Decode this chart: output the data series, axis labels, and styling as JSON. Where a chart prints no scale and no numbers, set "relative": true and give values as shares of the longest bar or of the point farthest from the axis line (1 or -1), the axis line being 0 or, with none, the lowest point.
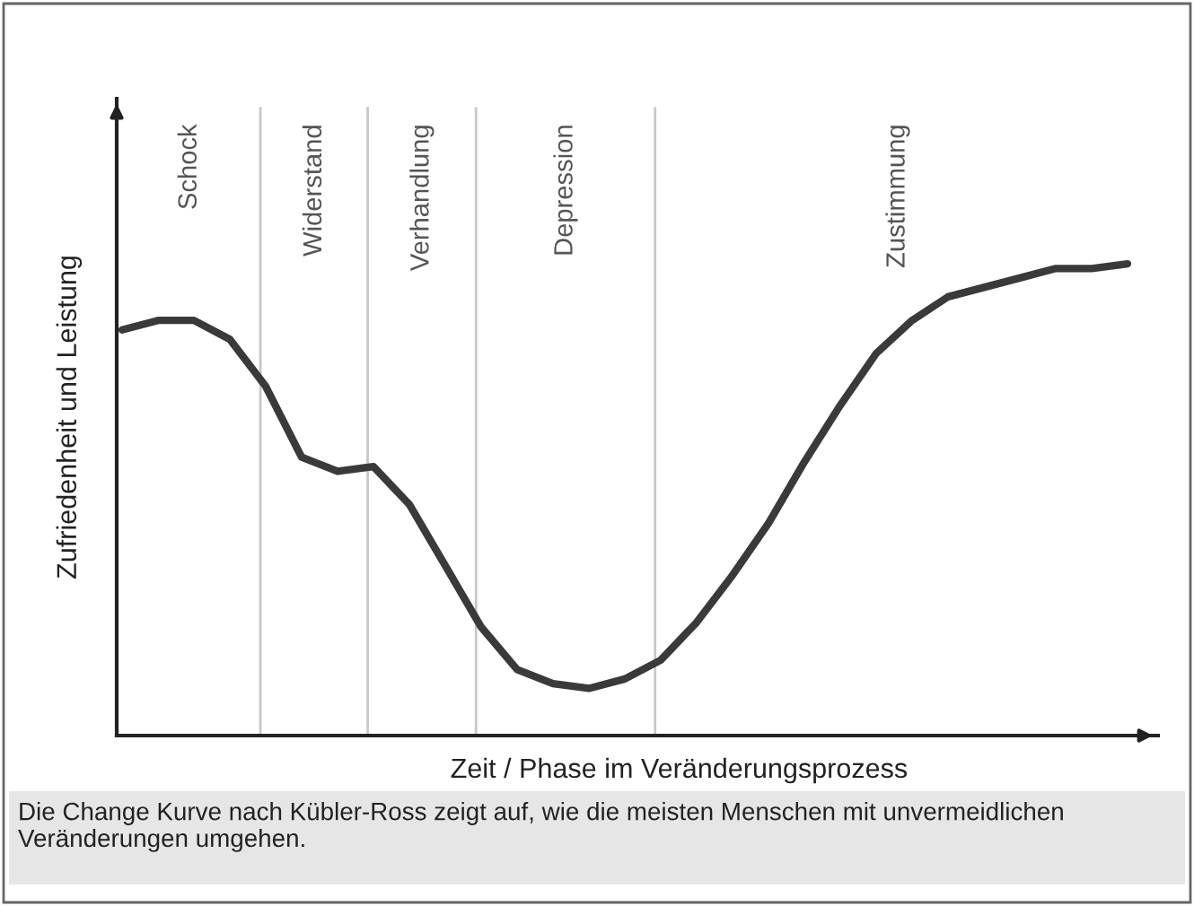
{
  "chart_data": {
    "type": "line",
    "relative": true,
    "xlabel": "Zeit / Phase im Veränderungsprozess",
    "ylabel": "Zufriedenheit und Leistung",
    "categories": [
      null,
      null,
      null,
      null,
      null,
      null,
      null,
      null,
      null,
      null,
      null,
      null,
      null,
      null,
      null,
      null,
      null,
      null,
      null,
      null,
      null,
      null,
      null,
      null,
      null,
      null,
      null,
      null,
      null
    ],
    "series": [
      {
        "color": "#3a3a3a",
        "values": [
          0.86,
          0.88,
          0.88,
          0.84,
          0.74,
          0.59,
          0.56,
          0.57,
          0.49,
          0.36,
          0.23,
          0.14,
          0.11,
          0.1,
          0.12,
          0.16,
          0.24,
          0.34,
          0.45,
          0.58,
          0.7,
          0.81,
          0.88,
          0.93,
          0.95,
          0.97,
          0.99,
          0.99,
          1
        ]
      }
    ],
    "annotations": [
      "Schock",
      "Widerstand",
      "Verhandlung",
      "Depression",
      "Zustimmung",
      "Die Change Kurve nach Kübler-Ross zeigt auf, wie die meisten Menschen mit unvermeidlichen Veränderungen umgehen."
    ],
    "tick_labels": false,
    "legend": false,
    "marker": "none",
    "line_style": "solid"
  }
}
